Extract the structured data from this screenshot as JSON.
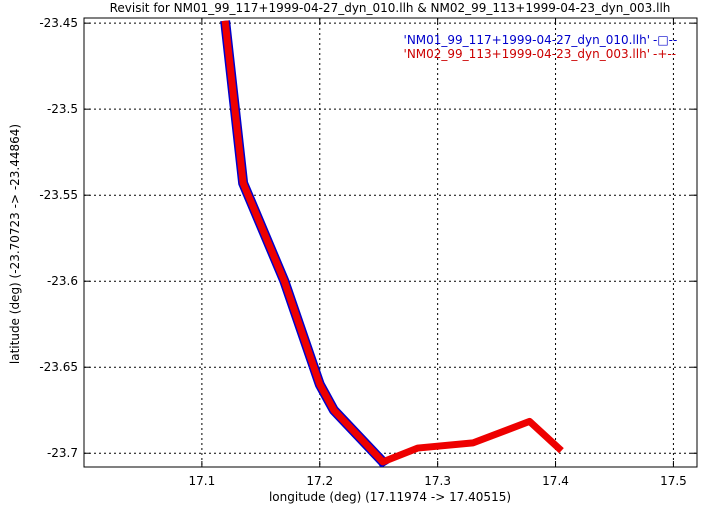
{
  "chart_data": {
    "type": "line",
    "title": "Revisit for NM01_99_117+1999-04-27_dyn_010.llh & NM02_99_113+1999-04-23_dyn_003.llh",
    "xlabel": "longitude (deg) (17.11974 -> 17.40515)",
    "ylabel": "latitude (deg) (-23.70723 -> -23.44864)",
    "xlim": [
      17.0,
      17.52
    ],
    "ylim": [
      -23.708,
      -23.447
    ],
    "x_ticks": [
      17.1,
      17.2,
      17.3,
      17.4,
      17.5
    ],
    "x_tick_labels": [
      "17.1",
      "17.2",
      "17.3",
      "17.4",
      "17.5"
    ],
    "y_ticks": [
      -23.45,
      -23.5,
      -23.55,
      -23.6,
      -23.65,
      -23.7
    ],
    "y_tick_labels": [
      "-23.45",
      "-23.5",
      "-23.55",
      "-23.6",
      "-23.65",
      "-23.7"
    ],
    "grid": true,
    "legend_position": "top-right",
    "series": [
      {
        "name": "'NM01_99_117+1999-04-27_dyn_010.llh'",
        "legend_symbol": "-□--",
        "color": "#0000cc",
        "x": [
          17.1197,
          17.135,
          17.17,
          17.2,
          17.212,
          17.2535,
          17.2555
        ],
        "y": [
          -23.4486,
          -23.543,
          -23.6,
          -23.66,
          -23.675,
          -23.705,
          -23.7072
        ]
      },
      {
        "name": "'NM02_99_113+1999-04-23_dyn_003.llh'",
        "legend_symbol": "-+--",
        "color": "#ee0000",
        "x": [
          17.1197,
          17.135,
          17.17,
          17.2,
          17.212,
          17.2535,
          17.283,
          17.33,
          17.378,
          17.405
        ],
        "y": [
          -23.4486,
          -23.543,
          -23.6,
          -23.66,
          -23.675,
          -23.705,
          -23.697,
          -23.694,
          -23.6815,
          -23.6985
        ]
      }
    ]
  }
}
